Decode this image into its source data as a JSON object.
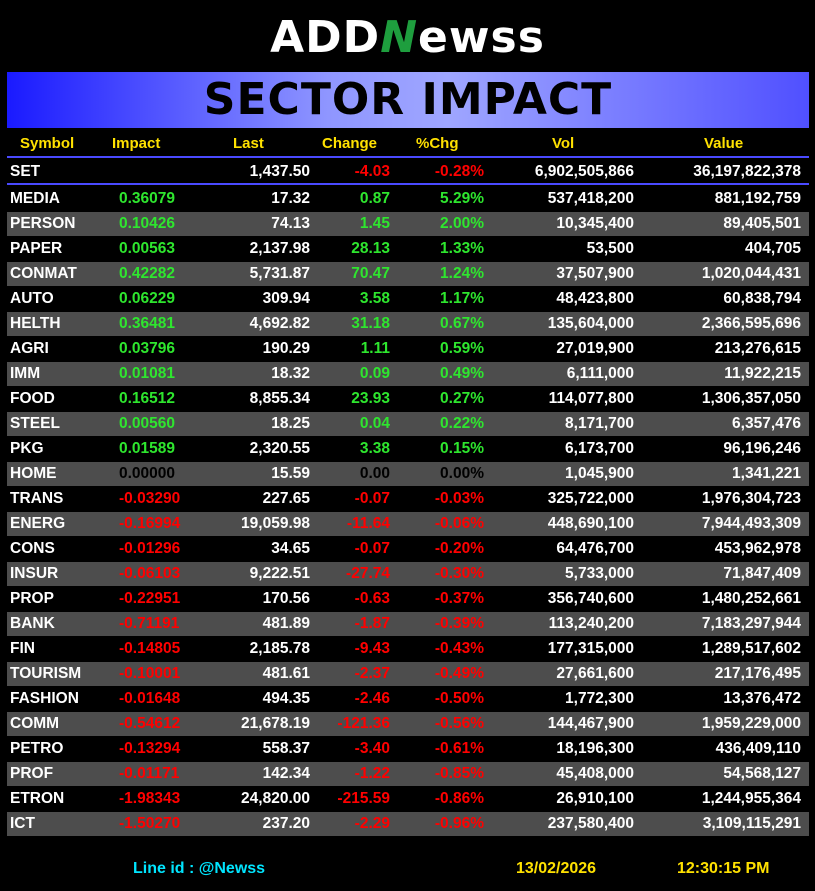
{
  "logo": {
    "part1": "ADD",
    "part2": "N",
    "part3": "ewss"
  },
  "banner_title": "SECTOR IMPACT",
  "columns": {
    "symbol": "Symbol",
    "impact": "Impact",
    "last": "Last",
    "change": "Change",
    "pchg": "%Chg",
    "vol": "Vol",
    "value": "Value"
  },
  "index_row": {
    "symbol": "SET",
    "impact": "",
    "last": "1,437.50",
    "change": "-4.03",
    "pchg": "-0.28%",
    "vol": "6,902,505,866",
    "value": "36,197,822,378"
  },
  "rows": [
    {
      "symbol": "MEDIA",
      "impact": "0.36079",
      "last": "17.32",
      "change": "0.87",
      "pchg": "5.29%",
      "vol": "537,418,200",
      "value": "881,192,759"
    },
    {
      "symbol": "PERSON",
      "impact": "0.10426",
      "last": "74.13",
      "change": "1.45",
      "pchg": "2.00%",
      "vol": "10,345,400",
      "value": "89,405,501"
    },
    {
      "symbol": "PAPER",
      "impact": "0.00563",
      "last": "2,137.98",
      "change": "28.13",
      "pchg": "1.33%",
      "vol": "53,500",
      "value": "404,705"
    },
    {
      "symbol": "CONMAT",
      "impact": "0.42282",
      "last": "5,731.87",
      "change": "70.47",
      "pchg": "1.24%",
      "vol": "37,507,900",
      "value": "1,020,044,431"
    },
    {
      "symbol": "AUTO",
      "impact": "0.06229",
      "last": "309.94",
      "change": "3.58",
      "pchg": "1.17%",
      "vol": "48,423,800",
      "value": "60,838,794"
    },
    {
      "symbol": "HELTH",
      "impact": "0.36481",
      "last": "4,692.82",
      "change": "31.18",
      "pchg": "0.67%",
      "vol": "135,604,000",
      "value": "2,366,595,696"
    },
    {
      "symbol": "AGRI",
      "impact": "0.03796",
      "last": "190.29",
      "change": "1.11",
      "pchg": "0.59%",
      "vol": "27,019,900",
      "value": "213,276,615"
    },
    {
      "symbol": "IMM",
      "impact": "0.01081",
      "last": "18.32",
      "change": "0.09",
      "pchg": "0.49%",
      "vol": "6,111,000",
      "value": "11,922,215"
    },
    {
      "symbol": "FOOD",
      "impact": "0.16512",
      "last": "8,855.34",
      "change": "23.93",
      "pchg": "0.27%",
      "vol": "114,077,800",
      "value": "1,306,357,050"
    },
    {
      "symbol": "STEEL",
      "impact": "0.00560",
      "last": "18.25",
      "change": "0.04",
      "pchg": "0.22%",
      "vol": "8,171,700",
      "value": "6,357,476"
    },
    {
      "symbol": "PKG",
      "impact": "0.01589",
      "last": "2,320.55",
      "change": "3.38",
      "pchg": "0.15%",
      "vol": "6,173,700",
      "value": "96,196,246"
    },
    {
      "symbol": "HOME",
      "impact": "0.00000",
      "last": "15.59",
      "change": "0.00",
      "pchg": "0.00%",
      "vol": "1,045,900",
      "value": "1,341,221"
    },
    {
      "symbol": "TRANS",
      "impact": "-0.03290",
      "last": "227.65",
      "change": "-0.07",
      "pchg": "-0.03%",
      "vol": "325,722,000",
      "value": "1,976,304,723"
    },
    {
      "symbol": "ENERG",
      "impact": "-0.16994",
      "last": "19,059.98",
      "change": "-11.64",
      "pchg": "-0.06%",
      "vol": "448,690,100",
      "value": "7,944,493,309"
    },
    {
      "symbol": "CONS",
      "impact": "-0.01296",
      "last": "34.65",
      "change": "-0.07",
      "pchg": "-0.20%",
      "vol": "64,476,700",
      "value": "453,962,978"
    },
    {
      "symbol": "INSUR",
      "impact": "-0.06103",
      "last": "9,222.51",
      "change": "-27.74",
      "pchg": "-0.30%",
      "vol": "5,733,000",
      "value": "71,847,409"
    },
    {
      "symbol": "PROP",
      "impact": "-0.22951",
      "last": "170.56",
      "change": "-0.63",
      "pchg": "-0.37%",
      "vol": "356,740,600",
      "value": "1,480,252,661"
    },
    {
      "symbol": "BANK",
      "impact": "-0.71191",
      "last": "481.89",
      "change": "-1.87",
      "pchg": "-0.39%",
      "vol": "113,240,200",
      "value": "7,183,297,944"
    },
    {
      "symbol": "FIN",
      "impact": "-0.14805",
      "last": "2,185.78",
      "change": "-9.43",
      "pchg": "-0.43%",
      "vol": "177,315,000",
      "value": "1,289,517,602"
    },
    {
      "symbol": "TOURISM",
      "impact": "-0.10001",
      "last": "481.61",
      "change": "-2.37",
      "pchg": "-0.49%",
      "vol": "27,661,600",
      "value": "217,176,495"
    },
    {
      "symbol": "FASHION",
      "impact": "-0.01648",
      "last": "494.35",
      "change": "-2.46",
      "pchg": "-0.50%",
      "vol": "1,772,300",
      "value": "13,376,472"
    },
    {
      "symbol": "COMM",
      "impact": "-0.54612",
      "last": "21,678.19",
      "change": "-121.36",
      "pchg": "-0.56%",
      "vol": "144,467,900",
      "value": "1,959,229,000"
    },
    {
      "symbol": "PETRO",
      "impact": "-0.13294",
      "last": "558.37",
      "change": "-3.40",
      "pchg": "-0.61%",
      "vol": "18,196,300",
      "value": "436,409,110"
    },
    {
      "symbol": "PROF",
      "impact": "-0.01171",
      "last": "142.34",
      "change": "-1.22",
      "pchg": "-0.85%",
      "vol": "45,408,000",
      "value": "54,568,127"
    },
    {
      "symbol": "ETRON",
      "impact": "-1.98343",
      "last": "24,820.00",
      "change": "-215.59",
      "pchg": "-0.86%",
      "vol": "26,910,100",
      "value": "1,244,955,364"
    },
    {
      "symbol": "ICT",
      "impact": "-1.50270",
      "last": "237.20",
      "change": "-2.29",
      "pchg": "-0.96%",
      "vol": "237,580,400",
      "value": "3,109,115,291"
    }
  ],
  "footer": {
    "line_id": "Line id  : @Newss",
    "date": "13/02/2026",
    "time": "12:30:15 PM"
  },
  "colors": {
    "positive": "#2ee62e",
    "negative": "#ff0000",
    "header": "#ffe100",
    "footer_cyan": "#00e5ff",
    "footer_yellow": "#ffe100"
  }
}
